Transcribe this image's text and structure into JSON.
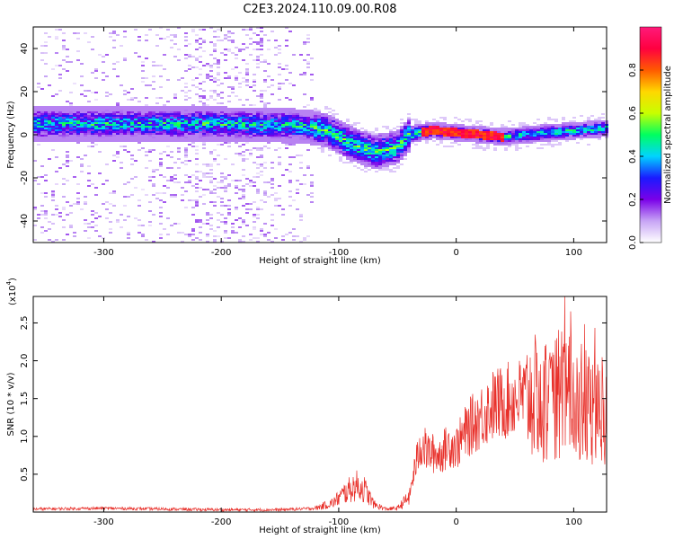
{
  "title": "C2E3.2024.110.09.00.R08",
  "chart_data": [
    {
      "type": "heatmap",
      "xlabel": "Height of straight line (km)",
      "ylabel": "Frequency (Hz)",
      "xlim": [
        -360,
        128
      ],
      "ylim": [
        -50,
        50
      ],
      "x_ticks": [
        -300,
        -200,
        -100,
        0,
        100
      ],
      "x_tick_labels": [
        "-300",
        "-200",
        "-100",
        "0",
        "100"
      ],
      "y_ticks": [
        -40,
        -20,
        0,
        20,
        40
      ],
      "y_tick_labels": [
        "-40",
        "-20",
        "0",
        "20",
        "40"
      ],
      "colorbar": {
        "label": "Normalized spectral amplitude",
        "range": [
          0,
          1
        ],
        "ticks": [
          0.0,
          0.2,
          0.4,
          0.6,
          0.8
        ],
        "tick_labels": [
          "0.0",
          "0.2",
          "0.4",
          "0.6",
          "0.8"
        ],
        "colors": [
          "#ffffff",
          "#c7a4f5",
          "#7a00e8",
          "#1a1aff",
          "#00d4ff",
          "#00ff60",
          "#c8ff00",
          "#ffd700",
          "#ff5a00",
          "#ff0040",
          "#ff1a7a"
        ]
      },
      "band_center_hz": [
        {
          "x": -360,
          "y": 5
        },
        {
          "x": -300,
          "y": 5
        },
        {
          "x": -200,
          "y": 5
        },
        {
          "x": -130,
          "y": 4
        },
        {
          "x": -110,
          "y": 2
        },
        {
          "x": -90,
          "y": -4
        },
        {
          "x": -70,
          "y": -8
        },
        {
          "x": -50,
          "y": -6
        },
        {
          "x": -40,
          "y": 0
        },
        {
          "x": -20,
          "y": 2
        },
        {
          "x": 0,
          "y": 1
        },
        {
          "x": 40,
          "y": -1
        },
        {
          "x": 80,
          "y": 1
        },
        {
          "x": 128,
          "y": 3
        }
      ],
      "grid": false
    },
    {
      "type": "line",
      "xlabel": "Height of straight line (km)",
      "ylabel": "SNR (10 * v/v)",
      "scale_label": "(x10^4)",
      "xlim": [
        -360,
        128
      ],
      "ylim": [
        0,
        2.85
      ],
      "x_ticks": [
        -300,
        -200,
        -100,
        0,
        100
      ],
      "x_tick_labels": [
        "-300",
        "-200",
        "-100",
        "0",
        "100"
      ],
      "y_ticks": [
        0.5,
        1.0,
        1.5,
        2.0,
        2.5
      ],
      "y_tick_labels": [
        "0.5",
        "1.0",
        "1.5",
        "2.0",
        "2.5"
      ],
      "series_color": "#e8302a",
      "series": [
        {
          "envelope": [
            {
              "x": -360,
              "y": 0.04
            },
            {
              "x": -300,
              "y": 0.05
            },
            {
              "x": -250,
              "y": 0.04
            },
            {
              "x": -200,
              "y": 0.03
            },
            {
              "x": -150,
              "y": 0.03
            },
            {
              "x": -120,
              "y": 0.05
            },
            {
              "x": -105,
              "y": 0.12
            },
            {
              "x": -95,
              "y": 0.25
            },
            {
              "x": -85,
              "y": 0.35
            },
            {
              "x": -78,
              "y": 0.3
            },
            {
              "x": -70,
              "y": 0.1
            },
            {
              "x": -60,
              "y": 0.04
            },
            {
              "x": -50,
              "y": 0.05
            },
            {
              "x": -40,
              "y": 0.2
            },
            {
              "x": -35,
              "y": 0.6
            },
            {
              "x": -30,
              "y": 0.9
            },
            {
              "x": -25,
              "y": 0.8
            },
            {
              "x": -15,
              "y": 0.75
            },
            {
              "x": -5,
              "y": 0.9
            },
            {
              "x": 0,
              "y": 0.85
            },
            {
              "x": 10,
              "y": 1.1
            },
            {
              "x": 20,
              "y": 1.25
            },
            {
              "x": 30,
              "y": 1.4
            },
            {
              "x": 40,
              "y": 1.45
            },
            {
              "x": 50,
              "y": 1.5
            },
            {
              "x": 60,
              "y": 1.55
            },
            {
              "x": 70,
              "y": 1.5
            },
            {
              "x": 80,
              "y": 1.4
            },
            {
              "x": 90,
              "y": 1.6
            },
            {
              "x": 100,
              "y": 1.5
            },
            {
              "x": 110,
              "y": 1.4
            },
            {
              "x": 120,
              "y": 1.3
            },
            {
              "x": 128,
              "y": 1.4
            }
          ]
        }
      ],
      "grid": false
    }
  ]
}
